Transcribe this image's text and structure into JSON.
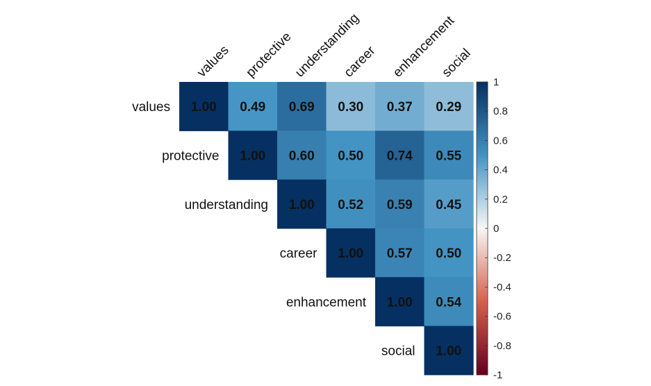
{
  "chart_data": {
    "type": "heatmap",
    "variables": [
      "values",
      "protective",
      "understanding",
      "career",
      "enhancement",
      "social"
    ],
    "matrix": [
      [
        1.0,
        0.49,
        0.69,
        0.3,
        0.37,
        0.29
      ],
      [
        null,
        1.0,
        0.6,
        0.5,
        0.74,
        0.55
      ],
      [
        null,
        null,
        1.0,
        0.52,
        0.59,
        0.45
      ],
      [
        null,
        null,
        null,
        1.0,
        0.57,
        0.5
      ],
      [
        null,
        null,
        null,
        null,
        1.0,
        0.54
      ],
      [
        null,
        null,
        null,
        null,
        null,
        1.0
      ]
    ],
    "display_values": [
      [
        "1.00",
        "0.49",
        "0.69",
        "0.30",
        "0.37",
        "0.29"
      ],
      [
        null,
        "1.00",
        "0.60",
        "0.50",
        "0.74",
        "0.55"
      ],
      [
        null,
        null,
        "1.00",
        "0.52",
        "0.59",
        "0.45"
      ],
      [
        null,
        null,
        null,
        "1.00",
        "0.57",
        "0.50"
      ],
      [
        null,
        null,
        null,
        null,
        "1.00",
        "0.54"
      ],
      [
        null,
        null,
        null,
        null,
        null,
        "1.00"
      ]
    ],
    "triangle": "upper",
    "colorbar": {
      "range": [
        -1,
        1
      ],
      "ticks": [
        "1",
        "0.8",
        "0.6",
        "0.4",
        "0.2",
        "0",
        "-0.2",
        "-0.4",
        "-0.6",
        "-0.8",
        "-1"
      ],
      "colors": {
        "neg_end": "#67001F",
        "neg_mid": "#D6604D",
        "zero": "#F7F7F7",
        "pos_mid": "#4393C3",
        "pos_end": "#053061"
      }
    },
    "grid": false,
    "legend": "right"
  }
}
